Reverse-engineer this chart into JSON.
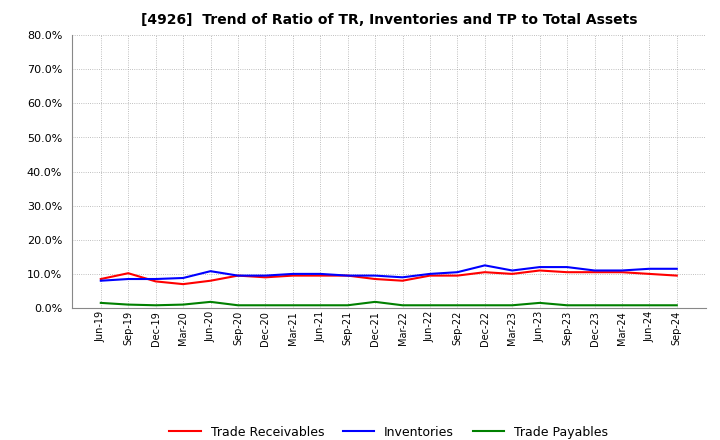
{
  "title": "[4926]  Trend of Ratio of TR, Inventories and TP to Total Assets",
  "x_labels": [
    "Jun-19",
    "Sep-19",
    "Dec-19",
    "Mar-20",
    "Jun-20",
    "Sep-20",
    "Dec-20",
    "Mar-21",
    "Jun-21",
    "Sep-21",
    "Dec-21",
    "Mar-22",
    "Jun-22",
    "Sep-22",
    "Dec-22",
    "Mar-23",
    "Jun-23",
    "Sep-23",
    "Dec-23",
    "Mar-24",
    "Jun-24",
    "Sep-24"
  ],
  "trade_receivables": [
    8.5,
    10.2,
    7.8,
    7.0,
    8.0,
    9.5,
    9.0,
    9.5,
    9.5,
    9.5,
    8.5,
    8.0,
    9.5,
    9.5,
    10.5,
    10.0,
    11.0,
    10.5,
    10.5,
    10.5,
    10.0,
    9.5
  ],
  "inventories": [
    8.0,
    8.5,
    8.5,
    8.8,
    10.8,
    9.5,
    9.5,
    10.0,
    10.0,
    9.5,
    9.5,
    9.0,
    10.0,
    10.5,
    12.5,
    11.0,
    12.0,
    12.0,
    11.0,
    11.0,
    11.5,
    11.5
  ],
  "trade_payables": [
    1.5,
    1.0,
    0.8,
    1.0,
    1.8,
    0.8,
    0.8,
    0.8,
    0.8,
    0.8,
    1.8,
    0.8,
    0.8,
    0.8,
    0.8,
    0.8,
    1.5,
    0.8,
    0.8,
    0.8,
    0.8,
    0.8
  ],
  "tr_color": "#ff0000",
  "inv_color": "#0000ff",
  "tp_color": "#008000",
  "ylim": [
    0,
    80
  ],
  "yticks": [
    0,
    10,
    20,
    30,
    40,
    50,
    60,
    70,
    80
  ],
  "grid_color": "#aaaaaa",
  "background_color": "#ffffff",
  "legend_tr": "Trade Receivables",
  "legend_inv": "Inventories",
  "legend_tp": "Trade Payables"
}
